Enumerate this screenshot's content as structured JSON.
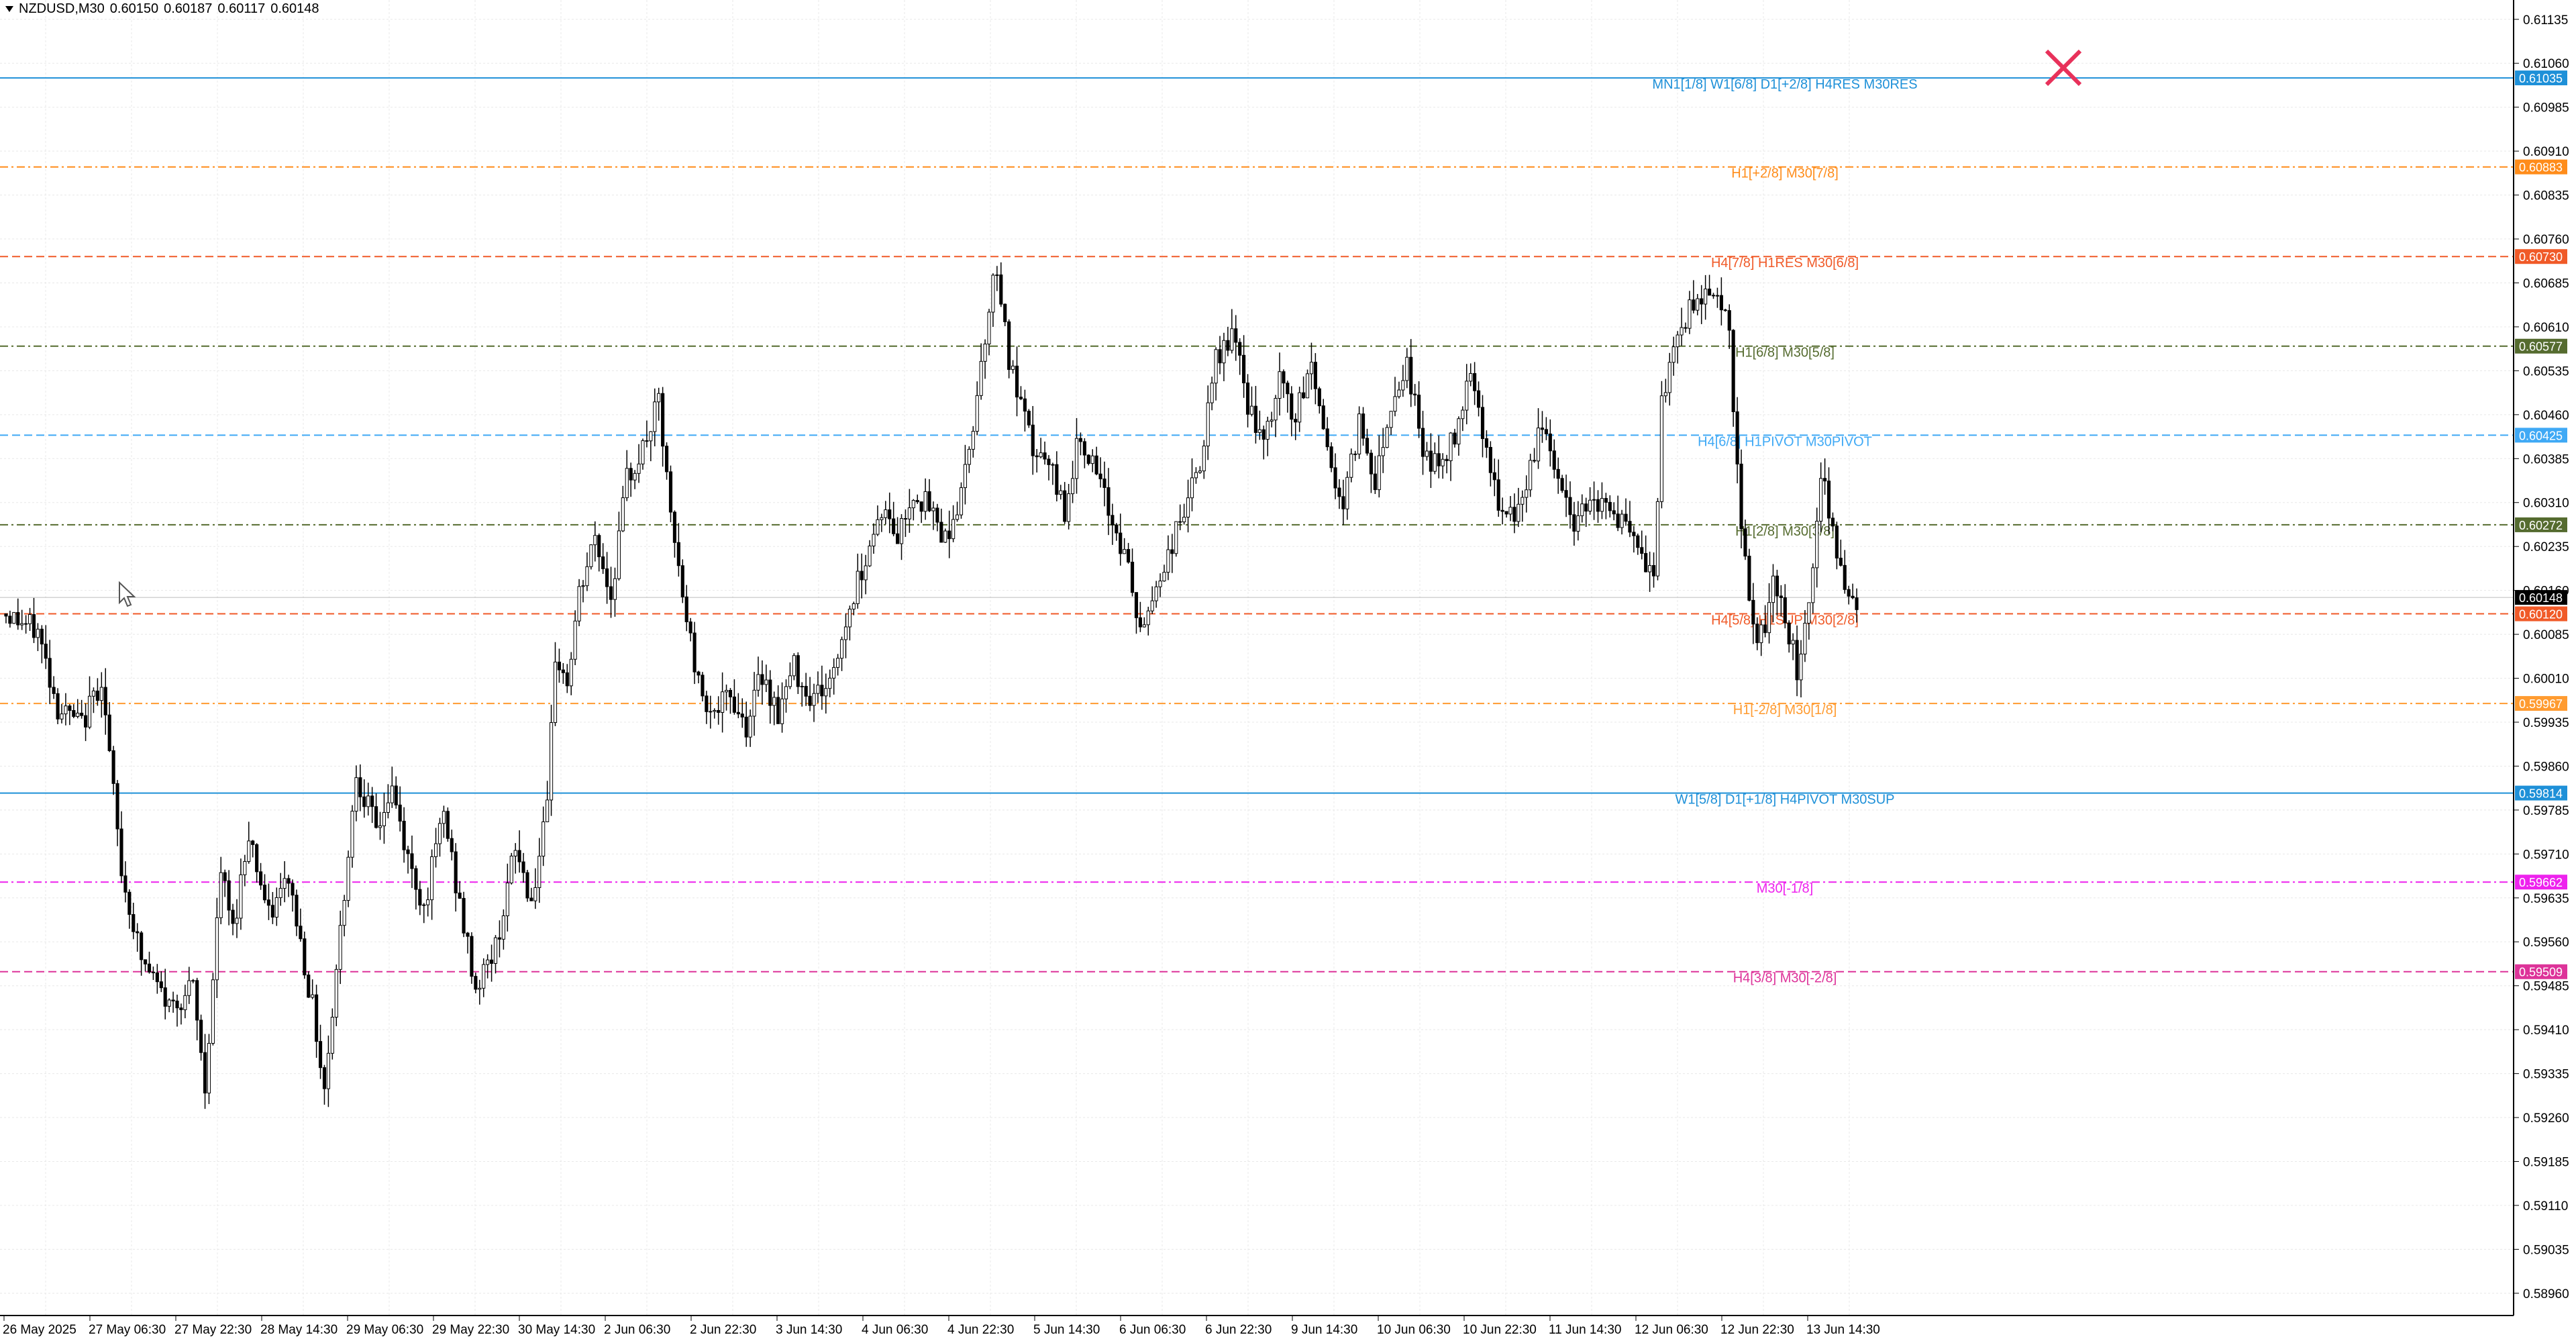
{
  "header": {
    "symbol": "NZDUSD,M30",
    "open": "0.60150",
    "high": "0.60187",
    "low": "0.60117",
    "close": "0.60148"
  },
  "colors": {
    "background": "#ffffff",
    "grid": "#e8e8e8",
    "axis": "#000000",
    "candle": "#000000",
    "close_icon": "#e8315a"
  },
  "icons": {
    "close": "close-icon",
    "cursor": "mouse-pointer-icon",
    "menu": "triangle-down-icon"
  },
  "chart_data": {
    "type": "candlestick",
    "title": "",
    "grid": true,
    "ylim": [
      0.58922,
      0.61168
    ],
    "y_ticks": [
      "0.61135",
      "0.61060",
      "0.60985",
      "0.60910",
      "0.60835",
      "0.60760",
      "0.60685",
      "0.60610",
      "0.60535",
      "0.60460",
      "0.60385",
      "0.60310",
      "0.60235",
      "0.60160",
      "0.60085",
      "0.60010",
      "0.59935",
      "0.59860",
      "0.59785",
      "0.59710",
      "0.59635",
      "0.59560",
      "0.59485",
      "0.59410",
      "0.59335",
      "0.59260",
      "0.59185",
      "0.59110",
      "0.59035",
      "0.58960"
    ],
    "x_labels": [
      "26 May 2025",
      "27 May 06:30",
      "27 May 22:30",
      "28 May 14:30",
      "29 May 06:30",
      "29 May 22:30",
      "30 May 14:30",
      "2 Jun 06:30",
      "2 Jun 22:30",
      "3 Jun 14:30",
      "4 Jun 06:30",
      "4 Jun 22:30",
      "5 Jun 14:30",
      "6 Jun 06:30",
      "6 Jun 22:30",
      "9 Jun 14:30",
      "10 Jun 06:30",
      "10 Jun 22:30",
      "11 Jun 14:30",
      "12 Jun 06:30",
      "12 Jun 22:30",
      "13 Jun 14:30"
    ],
    "current_price": "0.60148",
    "price_path": [
      [
        0,
        0.6012
      ],
      [
        8,
        0.6009
      ],
      [
        13,
        0.5996
      ],
      [
        19,
        0.5993
      ],
      [
        24,
        0.6001
      ],
      [
        29,
        0.5968
      ],
      [
        34,
        0.5953
      ],
      [
        41,
        0.5945
      ],
      [
        47,
        0.5948
      ],
      [
        50,
        0.5931
      ],
      [
        54,
        0.5968
      ],
      [
        57,
        0.5958
      ],
      [
        61,
        0.5975
      ],
      [
        66,
        0.596
      ],
      [
        71,
        0.5967
      ],
      [
        77,
        0.5945
      ],
      [
        80,
        0.5931
      ],
      [
        84,
        0.5958
      ],
      [
        88,
        0.5985
      ],
      [
        93,
        0.5975
      ],
      [
        97,
        0.5982
      ],
      [
        101,
        0.597
      ],
      [
        105,
        0.5962
      ],
      [
        110,
        0.5978
      ],
      [
        114,
        0.5962
      ],
      [
        118,
        0.5948
      ],
      [
        123,
        0.5955
      ],
      [
        128,
        0.5972
      ],
      [
        132,
        0.5963
      ],
      [
        136,
        0.5978
      ],
      [
        138,
        0.6005
      ],
      [
        141,
        0.6
      ],
      [
        144,
        0.6015
      ],
      [
        148,
        0.6025
      ],
      [
        152,
        0.6015
      ],
      [
        156,
        0.6035
      ],
      [
        160,
        0.604
      ],
      [
        164,
        0.6048
      ],
      [
        167,
        0.6028
      ],
      [
        170,
        0.6015
      ],
      [
        174,
        0.6
      ],
      [
        178,
        0.5995
      ],
      [
        182,
        0.5998
      ],
      [
        186,
        0.5993
      ],
      [
        190,
        0.6002
      ],
      [
        194,
        0.5995
      ],
      [
        198,
        0.6003
      ],
      [
        202,
        0.5998
      ],
      [
        207,
        0.6
      ],
      [
        212,
        0.6013
      ],
      [
        216,
        0.6022
      ],
      [
        220,
        0.603
      ],
      [
        224,
        0.6025
      ],
      [
        228,
        0.6033
      ],
      [
        232,
        0.603
      ],
      [
        236,
        0.6025
      ],
      [
        240,
        0.6032
      ],
      [
        243,
        0.6045
      ],
      [
        246,
        0.606
      ],
      [
        249,
        0.6072
      ],
      [
        252,
        0.6055
      ],
      [
        255,
        0.6047
      ],
      [
        258,
        0.604
      ],
      [
        262,
        0.6037
      ],
      [
        266,
        0.603
      ],
      [
        270,
        0.6043
      ],
      [
        274,
        0.6035
      ],
      [
        278,
        0.6028
      ],
      [
        282,
        0.602
      ],
      [
        285,
        0.6008
      ],
      [
        288,
        0.6015
      ],
      [
        292,
        0.6022
      ],
      [
        296,
        0.603
      ],
      [
        300,
        0.6037
      ],
      [
        304,
        0.6055
      ],
      [
        308,
        0.606
      ],
      [
        312,
        0.6048
      ],
      [
        316,
        0.604
      ],
      [
        320,
        0.6052
      ],
      [
        324,
        0.6045
      ],
      [
        328,
        0.6055
      ],
      [
        332,
        0.604
      ],
      [
        336,
        0.603
      ],
      [
        340,
        0.6045
      ],
      [
        344,
        0.6035
      ],
      [
        348,
        0.6048
      ],
      [
        352,
        0.6055
      ],
      [
        356,
        0.604
      ],
      [
        360,
        0.6037
      ],
      [
        364,
        0.6042
      ],
      [
        368,
        0.6055
      ],
      [
        372,
        0.604
      ],
      [
        375,
        0.603
      ],
      [
        378,
        0.6028
      ],
      [
        382,
        0.6033
      ],
      [
        386,
        0.6045
      ],
      [
        390,
        0.6035
      ],
      [
        394,
        0.6027
      ],
      [
        398,
        0.6033
      ],
      [
        402,
        0.603
      ],
      [
        406,
        0.6028
      ],
      [
        410,
        0.6022
      ],
      [
        414,
        0.6018
      ],
      [
        416,
        0.6047
      ],
      [
        420,
        0.606
      ],
      [
        424,
        0.6065
      ],
      [
        428,
        0.6068
      ],
      [
        431,
        0.6065
      ],
      [
        433,
        0.606
      ],
      [
        436,
        0.6025
      ],
      [
        440,
        0.6005
      ],
      [
        444,
        0.6017
      ],
      [
        447,
        0.6012
      ],
      [
        450,
        0.6002
      ],
      [
        453,
        0.6015
      ],
      [
        456,
        0.6035
      ],
      [
        459,
        0.6028
      ],
      [
        462,
        0.6015
      ],
      [
        465,
        0.6014
      ]
    ],
    "levels": [
      {
        "price": 0.61035,
        "label": "MN1[1/8] W1[6/8] D1[+2/8] H4RES M30RES",
        "price_label": "0.61035",
        "color": "#1e90d8",
        "style": "solid"
      },
      {
        "price": 0.60883,
        "label": "H1[+2/8] M30[7/8]",
        "price_label": "0.60883",
        "color": "#ff8c1a",
        "style": "dashdot"
      },
      {
        "price": 0.6073,
        "label": "H4[7/8] H1RES M30[6/8]",
        "price_label": "0.60730",
        "color": "#f05a28",
        "style": "dash"
      },
      {
        "price": 0.60577,
        "label": "H1[6/8] M30[5/8]",
        "price_label": "0.60577",
        "color": "#556b2f",
        "style": "dashdot"
      },
      {
        "price": 0.60425,
        "label": "H4[6/8] H1PIVOT M30PIVOT",
        "price_label": "0.60425",
        "color": "#3fa9f5",
        "style": "dash"
      },
      {
        "price": 0.60272,
        "label": "H1[2/8] M30[3/8]",
        "price_label": "0.60272",
        "color": "#556b2f",
        "style": "dashdot"
      },
      {
        "price": 0.6012,
        "label": "H4[5/8] H1SUP M30[2/8]",
        "price_label": "0.60120",
        "color": "#f05a28",
        "style": "dash"
      },
      {
        "price": 0.59967,
        "label": "H1[-2/8] M30[1/8]",
        "price_label": "0.59967",
        "color": "#ff9b30",
        "style": "dashdot"
      },
      {
        "price": 0.59814,
        "label": "W1[5/8] D1[+1/8] H4PIVOT M30SUP",
        "price_label": "0.59814",
        "color": "#1e90d8",
        "style": "solid"
      },
      {
        "price": 0.59662,
        "label": "M30[-1/8]",
        "price_label": "0.59662",
        "color": "#ee22ee",
        "style": "dashdot"
      },
      {
        "price": 0.59509,
        "label": "H4[3/8] M30[-2/8]",
        "price_label": "0.59509",
        "color": "#dd3399",
        "style": "dash"
      }
    ]
  }
}
